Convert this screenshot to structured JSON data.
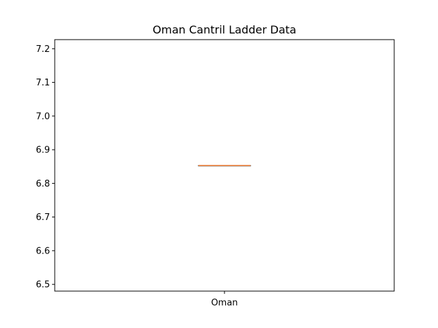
{
  "chart_data": {
    "type": "box",
    "title": "Oman Cantril Ladder Data",
    "xlabel": "",
    "ylabel": "",
    "categories": [
      "Oman"
    ],
    "series": [
      {
        "values": [
          6.853
        ]
      }
    ],
    "box_stats": [
      {
        "category": "Oman",
        "min": 6.853,
        "q1": 6.853,
        "median": 6.853,
        "q3": 6.853,
        "max": 6.853
      }
    ],
    "ylim": [
      6.48,
      7.227
    ],
    "yticks": [
      6.5,
      6.6,
      6.7,
      6.8,
      6.9,
      7.0,
      7.1,
      7.2
    ],
    "ytick_labels": [
      "6.5",
      "6.6",
      "6.7",
      "6.8",
      "6.9",
      "7.0",
      "7.1",
      "7.2"
    ],
    "grid": false,
    "colors": {
      "median": "#e8742a",
      "box": "#000000",
      "axis": "#000000"
    }
  }
}
